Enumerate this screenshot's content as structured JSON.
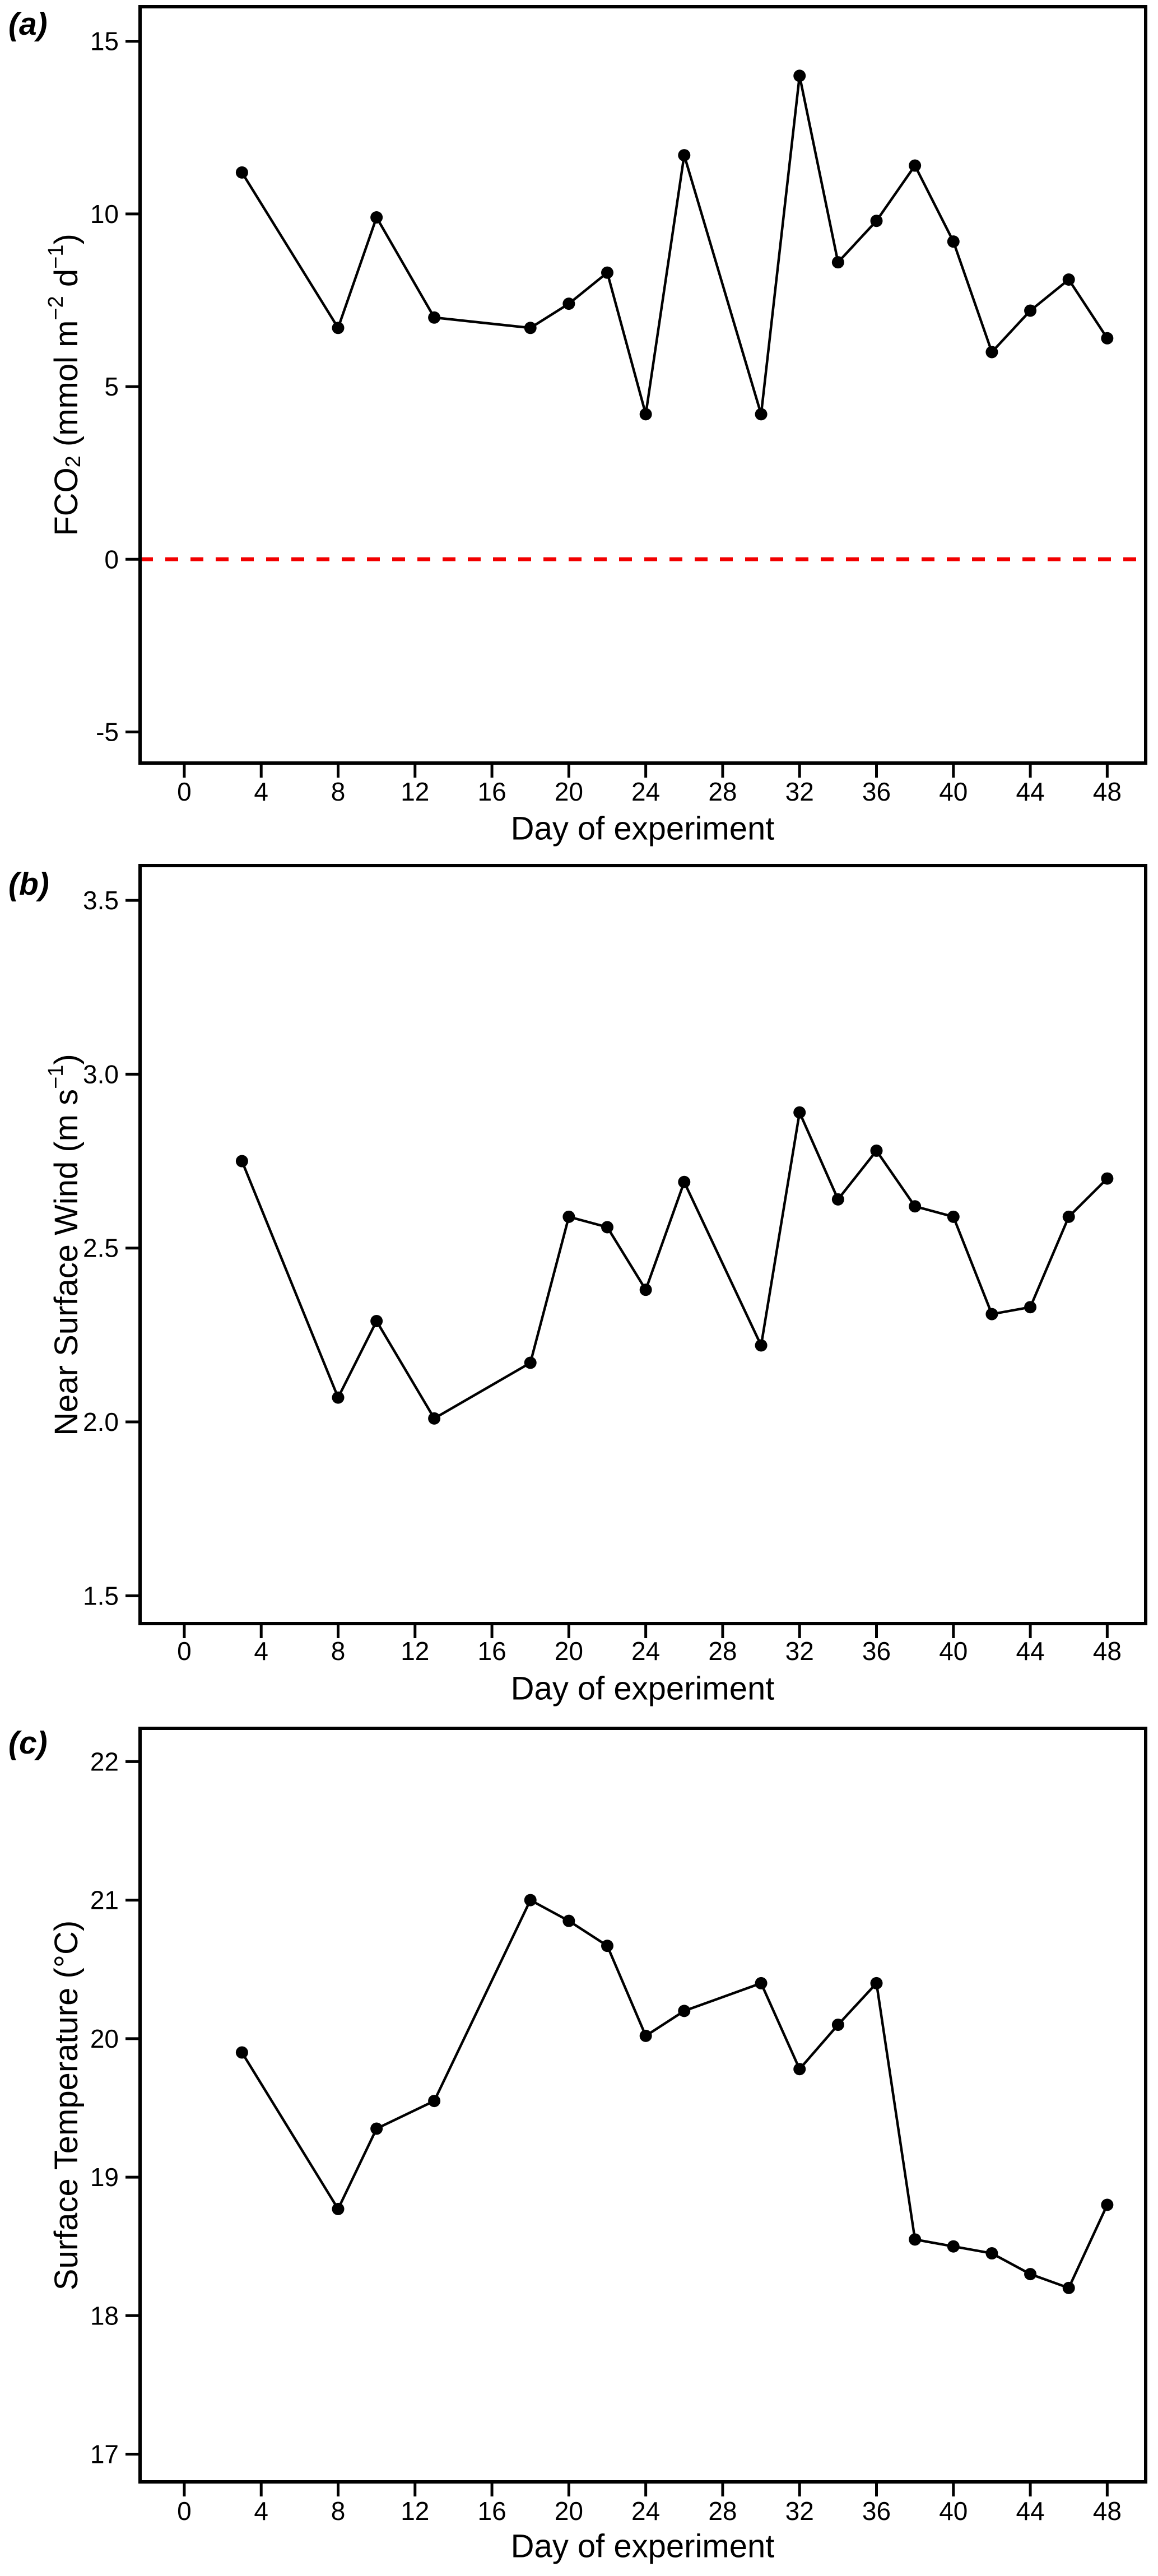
{
  "figure": {
    "background_color": "#ffffff",
    "axis_color": "#000000",
    "series_color": "#000000",
    "marker": "circle",
    "panel_count": 3
  },
  "chart_data": [
    {
      "id": "a",
      "type": "line",
      "panel_label": "(a)",
      "xlabel": "Day of experiment",
      "ylabel": "FCO2 (mmol m-2 d-1)",
      "ylabel_parts": [
        {
          "t": "FCO"
        },
        {
          "t": "2",
          "sub": true
        },
        {
          "t": " (mmol  m"
        },
        {
          "t": "−2",
          "sup": true
        },
        {
          "t": "  d"
        },
        {
          "t": "−1",
          "sup": true
        },
        {
          "t": ")"
        }
      ],
      "x": [
        3,
        8,
        10,
        13,
        18,
        20,
        22,
        24,
        26,
        30,
        32,
        34,
        36,
        38,
        40,
        42,
        44,
        46,
        48
      ],
      "y": [
        11.2,
        6.7,
        9.9,
        7.0,
        6.7,
        7.4,
        8.3,
        4.2,
        11.7,
        4.2,
        14.0,
        8.6,
        9.8,
        11.4,
        9.2,
        6.0,
        7.2,
        8.1,
        6.4
      ],
      "xticks": [
        0,
        4,
        8,
        12,
        16,
        20,
        24,
        28,
        32,
        36,
        40,
        44,
        48
      ],
      "yticks": [
        15,
        10,
        5,
        0,
        -5
      ],
      "ytick_labels": [
        "15",
        "10",
        "5",
        "0",
        "-5"
      ],
      "xlim": [
        -2.3,
        50.0
      ],
      "ylim": [
        -5.9,
        16.0
      ],
      "grid": false,
      "legend": null,
      "ref_line": {
        "y": 0,
        "color": "#f20000",
        "style": "dashed"
      }
    },
    {
      "id": "b",
      "type": "line",
      "panel_label": "(b)",
      "xlabel": "Day of experiment",
      "ylabel": "Near Surface Wind (m s-1)",
      "ylabel_parts": [
        {
          "t": "Near Surface Wind (m  s"
        },
        {
          "t": "−1",
          "sup": true
        },
        {
          "t": ")"
        }
      ],
      "x": [
        3,
        8,
        10,
        13,
        18,
        20,
        22,
        24,
        26,
        30,
        32,
        34,
        36,
        38,
        40,
        42,
        44,
        46,
        48
      ],
      "y": [
        2.75,
        2.07,
        2.29,
        2.01,
        2.17,
        2.59,
        2.56,
        2.38,
        2.69,
        2.22,
        2.89,
        2.64,
        2.78,
        2.62,
        2.59,
        2.31,
        2.33,
        2.59,
        2.7
      ],
      "xticks": [
        0,
        4,
        8,
        12,
        16,
        20,
        24,
        28,
        32,
        36,
        40,
        44,
        48
      ],
      "yticks": [
        3.5,
        3.0,
        2.5,
        2.0,
        1.5
      ],
      "ytick_labels": [
        "3.5",
        "3.0",
        "2.5",
        "2.0",
        "1.5"
      ],
      "xlim": [
        -2.3,
        50.0
      ],
      "ylim": [
        1.42,
        3.6
      ],
      "grid": false,
      "legend": null,
      "ref_line": null
    },
    {
      "id": "c",
      "type": "line",
      "panel_label": "(c)",
      "xlabel": "Day of experiment",
      "ylabel": "Surface Temperature (°C)",
      "ylabel_parts": [
        {
          "t": "Surface Temperature (°C)"
        }
      ],
      "x": [
        3,
        8,
        10,
        13,
        18,
        20,
        22,
        24,
        26,
        30,
        32,
        34,
        36,
        38,
        40,
        42,
        44,
        46,
        48
      ],
      "y": [
        19.9,
        18.77,
        19.35,
        19.55,
        21.0,
        20.85,
        20.67,
        20.02,
        20.2,
        20.4,
        19.78,
        20.1,
        20.4,
        18.55,
        18.5,
        18.45,
        18.3,
        18.2,
        18.8
      ],
      "xticks": [
        0,
        4,
        8,
        12,
        16,
        20,
        24,
        28,
        32,
        36,
        40,
        44,
        48
      ],
      "yticks": [
        22,
        21,
        20,
        19,
        18,
        17
      ],
      "ytick_labels": [
        "22",
        "21",
        "20",
        "19",
        "18",
        "17"
      ],
      "xlim": [
        -2.3,
        50.0
      ],
      "ylim": [
        16.8,
        22.24
      ],
      "grid": false,
      "legend": null,
      "ref_line": null
    }
  ]
}
